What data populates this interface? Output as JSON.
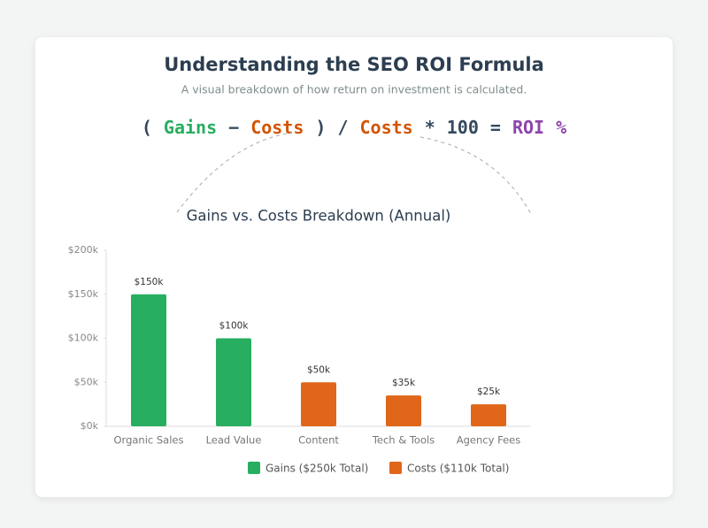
{
  "header": {
    "title": "Understanding the SEO ROI Formula",
    "subtitle": "A visual breakdown of how return on investment is calculated."
  },
  "formula": [
    {
      "text": "(",
      "color": "#34495e"
    },
    {
      "text": "Gains",
      "color": "#27ae60"
    },
    {
      "text": "−",
      "color": "#34495e"
    },
    {
      "text": "Costs",
      "color": "#d35400"
    },
    {
      "text": ")",
      "color": "#34495e"
    },
    {
      "text": "/",
      "color": "#34495e"
    },
    {
      "text": "Costs",
      "color": "#d35400"
    },
    {
      "text": "*",
      "color": "#34495e"
    },
    {
      "text": "100",
      "color": "#34495e"
    },
    {
      "text": "=",
      "color": "#34495e"
    },
    {
      "text": "ROI",
      "color": "#8e44ad"
    },
    {
      "text": "%",
      "color": "#8e44ad"
    }
  ],
  "chart_data": {
    "type": "bar",
    "title": "Gains vs. Costs Breakdown (Annual)",
    "categories": [
      "Organic Sales",
      "Lead Value",
      "Content",
      "Tech & Tools",
      "Agency Fees"
    ],
    "series": [
      {
        "name": "Gains ($250k Total)",
        "color": "#27ae60",
        "values": [
          150,
          100,
          null,
          null,
          null
        ],
        "value_labels": [
          "$150k",
          "$100k",
          null,
          null,
          null
        ]
      },
      {
        "name": "Costs ($110k Total)",
        "color": "#e0661a",
        "values": [
          null,
          null,
          50,
          35,
          25
        ],
        "value_labels": [
          null,
          null,
          "$50k",
          "$35k",
          "$25k"
        ]
      }
    ],
    "ylim": [
      0,
      200
    ],
    "yticks": [
      {
        "value": 0,
        "label": "$0k"
      },
      {
        "value": 50,
        "label": "$50k"
      },
      {
        "value": 100,
        "label": "$100k"
      },
      {
        "value": 150,
        "label": "$150k"
      },
      {
        "value": 200,
        "label": "$200k"
      }
    ],
    "legend": "bottom"
  }
}
